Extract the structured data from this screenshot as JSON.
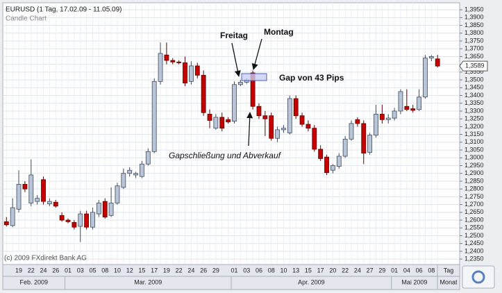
{
  "chart_data": {
    "type": "candlestick",
    "title": "EURUSD (1 Tag, 17.02.09 - 11.05.09)",
    "subtitle": "Candle Chart",
    "copyright": "(c) 2009 FXdirekt Bank AG",
    "annotations": {
      "friday": "Freitag",
      "monday": "Montag",
      "gap": "Gap von 43 Pips",
      "closing": "Gapschließung und Abverkauf"
    },
    "x_axis_caption": "Tag",
    "month_axis_caption": "Monat",
    "months": [
      "Feb. 2009",
      "Mar. 2009",
      "Apr. 2009",
      "Mai 2009"
    ],
    "categories": [
      null,
      null,
      "19",
      null,
      "22",
      null,
      "24",
      null,
      "26",
      null,
      "01",
      null,
      "03",
      null,
      "05",
      null,
      "08",
      null,
      "10",
      null,
      "12",
      null,
      "15",
      null,
      "17",
      null,
      "19",
      null,
      "22",
      null,
      "24",
      null,
      "26",
      null,
      "29",
      null,
      null,
      "01",
      null,
      "03",
      null,
      "06",
      null,
      "08",
      null,
      "10",
      null,
      "13",
      null,
      "15",
      null,
      "17",
      null,
      "20",
      null,
      "22",
      null,
      "24",
      null,
      "27",
      null,
      "29",
      null,
      "01",
      null,
      "04",
      null,
      "06",
      null,
      "08",
      null
    ],
    "open": [
      1.259,
      1.2565,
      1.267,
      1.283,
      1.271,
      1.272,
      1.286,
      1.2705,
      1.2715,
      1.263,
      1.26,
      1.2585,
      1.256,
      1.264,
      1.2555,
      1.264,
      1.272,
      1.263,
      1.271,
      1.281,
      1.29,
      1.289,
      1.288,
      1.296,
      1.304,
      1.349,
      1.366,
      1.3625,
      1.3615,
      1.361,
      1.349,
      1.359,
      1.353,
      1.328,
      1.319,
      1.326,
      1.3245,
      1.3235,
      1.347,
      1.3485,
      1.3545,
      1.333,
      1.327,
      1.327,
      1.3125,
      1.318,
      1.316,
      1.338,
      1.327,
      1.3215,
      1.319,
      1.3055,
      1.3005,
      1.292,
      1.2945,
      1.301,
      1.312,
      1.3245,
      1.322,
      1.3035,
      1.3145,
      1.328,
      1.3245,
      1.3255,
      1.33,
      1.333,
      1.3315,
      1.331,
      1.339,
      1.364,
      1.3635
    ],
    "high": [
      1.262,
      1.274,
      1.292,
      1.285,
      1.299,
      1.276,
      1.288,
      1.274,
      1.273,
      1.265,
      1.261,
      1.26,
      1.266,
      1.266,
      1.268,
      1.273,
      1.274,
      1.281,
      1.284,
      1.293,
      1.294,
      1.291,
      1.298,
      1.306,
      1.351,
      1.374,
      1.374,
      1.364,
      1.3625,
      1.365,
      1.362,
      1.361,
      1.356,
      1.331,
      1.328,
      1.329,
      1.326,
      1.349,
      1.35,
      1.351,
      1.356,
      1.335,
      1.33,
      1.329,
      1.32,
      1.321,
      1.34,
      1.34,
      1.329,
      1.324,
      1.321,
      1.308,
      1.302,
      1.296,
      1.303,
      1.314,
      1.324,
      1.326,
      1.324,
      1.316,
      1.334,
      1.334,
      1.328,
      1.332,
      1.344,
      1.344,
      1.334,
      1.344,
      1.366,
      1.366,
      1.366
    ],
    "low": [
      1.256,
      1.2555,
      1.265,
      1.278,
      1.269,
      1.27,
      1.27,
      1.269,
      1.268,
      1.259,
      1.258,
      1.254,
      1.246,
      1.254,
      1.254,
      1.262,
      1.261,
      1.262,
      1.27,
      1.28,
      1.288,
      1.287,
      1.287,
      1.295,
      1.303,
      1.347,
      1.36,
      1.36,
      1.36,
      1.346,
      1.347,
      1.351,
      1.327,
      1.319,
      1.318,
      1.317,
      1.322,
      1.322,
      1.346,
      1.3475,
      1.331,
      1.325,
      1.314,
      1.311,
      1.31,
      1.316,
      1.315,
      1.325,
      1.32,
      1.317,
      1.304,
      1.298,
      1.289,
      1.29,
      1.293,
      1.3,
      1.311,
      1.32,
      1.296,
      1.302,
      1.313,
      1.322,
      1.322,
      1.324,
      1.328,
      1.33,
      1.329,
      1.33,
      1.338,
      1.362,
      1.358
    ],
    "close": [
      1.257,
      1.268,
      1.283,
      1.28,
      1.289,
      1.274,
      1.272,
      1.272,
      1.269,
      1.26,
      1.259,
      1.2555,
      1.264,
      1.2555,
      1.265,
      1.271,
      1.262,
      1.271,
      1.282,
      1.29,
      1.292,
      1.29,
      1.296,
      1.304,
      1.349,
      1.367,
      1.3625,
      1.3615,
      1.361,
      1.348,
      1.359,
      1.353,
      1.329,
      1.324,
      1.326,
      1.319,
      1.323,
      1.347,
      1.3485,
      1.35,
      1.333,
      1.327,
      1.325,
      1.3125,
      1.318,
      1.319,
      1.338,
      1.327,
      1.3215,
      1.319,
      1.3055,
      1.2995,
      1.2905,
      1.295,
      1.301,
      1.312,
      1.322,
      1.322,
      1.303,
      1.3145,
      1.328,
      1.3245,
      1.3255,
      1.33,
      1.3425,
      1.331,
      1.3305,
      1.339,
      1.364,
      1.365,
      1.3589
    ],
    "up_color": "#b8c4d8",
    "down_color": "#c40000",
    "last_price": {
      "value": 1.3589,
      "label": "1,3589"
    },
    "ylim": [
      1.2315,
      1.3995
    ],
    "yticks": [
      {
        "value": 1.235,
        "label": "1,2350"
      },
      {
        "value": 1.24,
        "label": "1,2400"
      },
      {
        "value": 1.245,
        "label": "1,2450"
      },
      {
        "value": 1.25,
        "label": "1,2500"
      },
      {
        "value": 1.255,
        "label": "1,2550"
      },
      {
        "value": 1.26,
        "label": "1,2600"
      },
      {
        "value": 1.265,
        "label": "1,2650"
      },
      {
        "value": 1.27,
        "label": "1,2700"
      },
      {
        "value": 1.275,
        "label": "1,2750"
      },
      {
        "value": 1.28,
        "label": "1,2800"
      },
      {
        "value": 1.285,
        "label": "1,2850"
      },
      {
        "value": 1.29,
        "label": "1,2900"
      },
      {
        "value": 1.295,
        "label": "1,2950"
      },
      {
        "value": 1.3,
        "label": "1,3000"
      },
      {
        "value": 1.305,
        "label": "1,3050"
      },
      {
        "value": 1.31,
        "label": "1,3100"
      },
      {
        "value": 1.315,
        "label": "1,3150"
      },
      {
        "value": 1.32,
        "label": "1,3200"
      },
      {
        "value": 1.325,
        "label": "1,3250"
      },
      {
        "value": 1.33,
        "label": "1,3300"
      },
      {
        "value": 1.335,
        "label": "1,3350"
      },
      {
        "value": 1.34,
        "label": "1,3400"
      },
      {
        "value": 1.345,
        "label": "1,3450"
      },
      {
        "value": 1.35,
        "label": "1,3500"
      },
      {
        "value": 1.355,
        "label": "1,3550"
      },
      {
        "value": 1.36,
        "label": "1,3600"
      },
      {
        "value": 1.365,
        "label": "1,3650"
      },
      {
        "value": 1.37,
        "label": "1,3700"
      },
      {
        "value": 1.375,
        "label": "1,3750"
      },
      {
        "value": 1.38,
        "label": "1,3800"
      },
      {
        "value": 1.385,
        "label": "1,3850"
      },
      {
        "value": 1.39,
        "label": "1,3900"
      },
      {
        "value": 1.395,
        "label": "1,3950"
      }
    ],
    "grid": true
  }
}
